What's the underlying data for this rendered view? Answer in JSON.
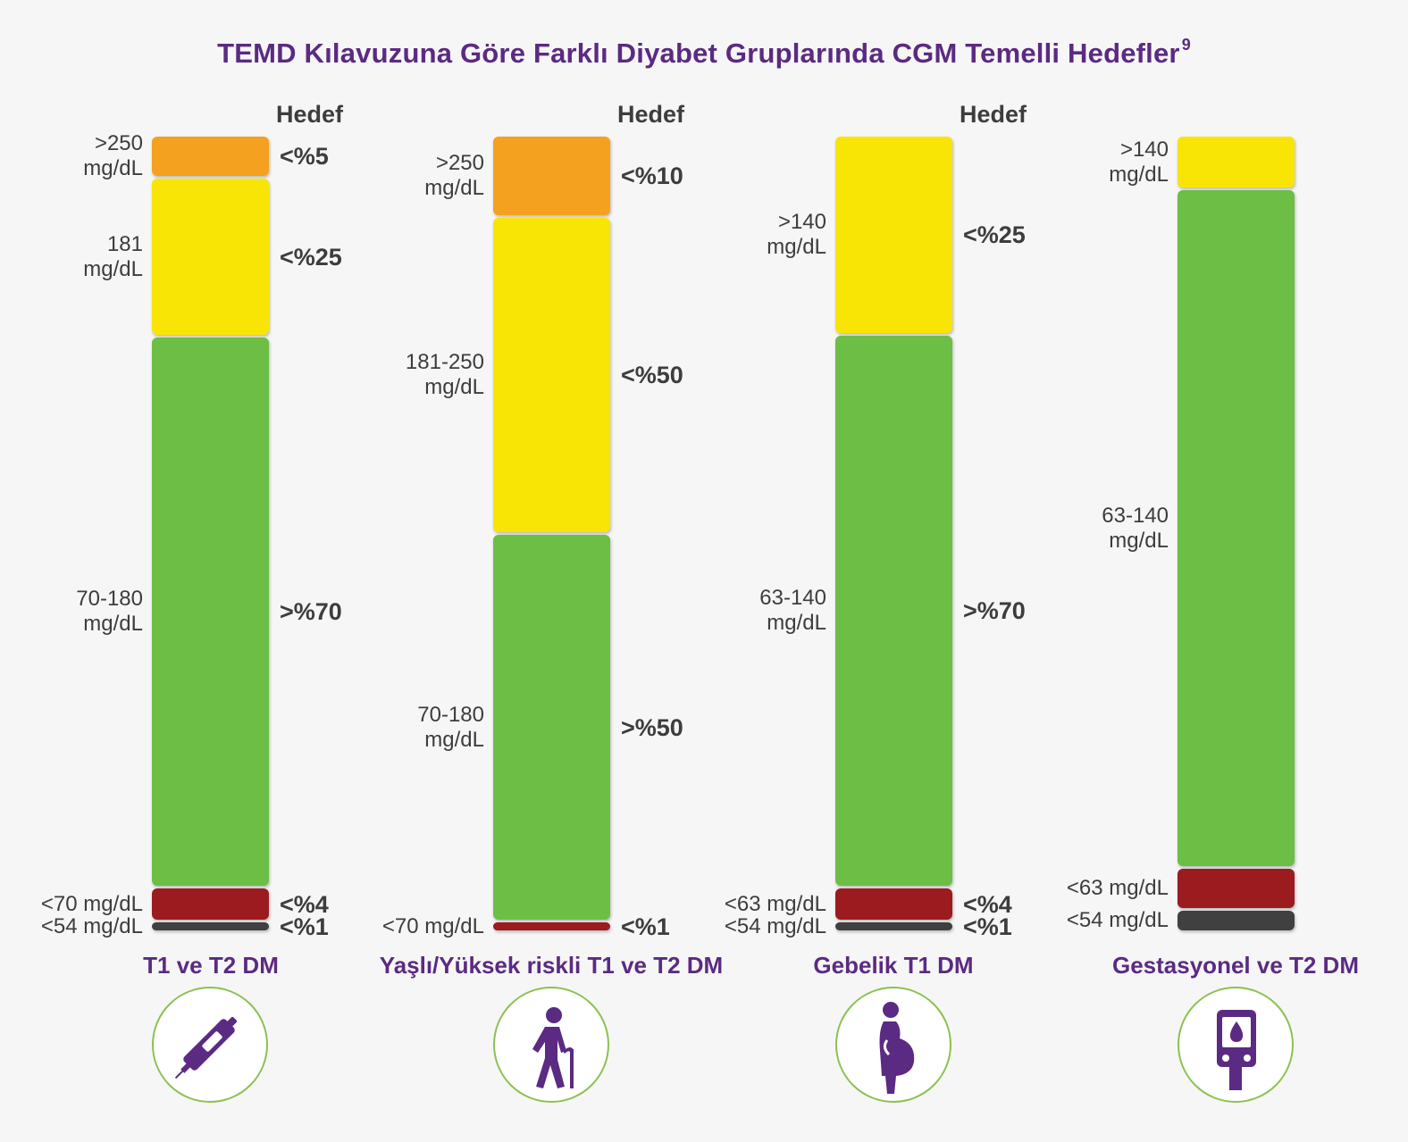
{
  "title": "TEMD Kılavuzuna Göre Farklı Diyabet Gruplarında CGM Temelli Hedefler",
  "title_superscript": "9",
  "target_header": "Hedef",
  "colors": {
    "very_high": "#f4a11f",
    "high": "#f9e505",
    "in_range": "#6dbe45",
    "low": "#9b1b1f",
    "very_low": "#404041",
    "accent": "#5b2a82",
    "circle": "#8cc152"
  },
  "chart_data": [
    {
      "type": "bar",
      "group": "T1 ve T2 DM",
      "icon": "insulin-pen-icon",
      "show_target_header": true,
      "segments": [
        {
          "range": ">250\nmg/dL",
          "target": "<%5",
          "color_key": "very_high",
          "share": 5
        },
        {
          "range": "181\nmg/dL",
          "target": "<%25",
          "color_key": "high",
          "share": 20
        },
        {
          "range": "70-180\nmg/dL",
          "target": ">%70",
          "color_key": "in_range",
          "share": 70
        },
        {
          "range": "<70 mg/dL",
          "target": "<%4",
          "color_key": "low",
          "share": 4
        },
        {
          "range": "<54 mg/dL",
          "target": "<%1",
          "color_key": "very_low",
          "share": 1
        }
      ]
    },
    {
      "type": "bar",
      "group": "Yaşlı/Yüksek riskli T1 ve T2 DM",
      "icon": "elderly-person-with-cane-icon",
      "show_target_header": true,
      "segments": [
        {
          "range": ">250\nmg/dL",
          "target": "<%10",
          "color_key": "very_high",
          "share": 10
        },
        {
          "range": "181-250\nmg/dL",
          "target": "<%50",
          "color_key": "high",
          "share": 40
        },
        {
          "range": "70-180\nmg/dL",
          "target": ">%50",
          "color_key": "in_range",
          "share": 49
        },
        {
          "range": "<70 mg/dL",
          "target": "<%1",
          "color_key": "low",
          "share": 1
        }
      ]
    },
    {
      "type": "bar",
      "group": "Gebelik T1 DM",
      "icon": "pregnant-woman-icon",
      "show_target_header": true,
      "segments": [
        {
          "range": ">140\nmg/dL",
          "target": "<%25",
          "color_key": "high",
          "share": 25
        },
        {
          "range": "63-140\nmg/dL",
          "target": ">%70",
          "color_key": "in_range",
          "share": 70
        },
        {
          "range": "<63 mg/dL",
          "target": "<%4",
          "color_key": "low",
          "share": 4
        },
        {
          "range": "<54 mg/dL",
          "target": "<%1",
          "color_key": "very_low",
          "share": 1
        }
      ]
    },
    {
      "type": "bar",
      "group": "Gestasyonel ve T2 DM",
      "icon": "glucose-meter-icon",
      "show_target_header": false,
      "segments": [
        {
          "range": ">140\nmg/dL",
          "target": "",
          "color_key": "high",
          "share": 6.5
        },
        {
          "range": "63-140\nmg/dL",
          "target": "",
          "color_key": "in_range",
          "share": 86
        },
        {
          "range": "<63 mg/dL",
          "target": "",
          "color_key": "low",
          "share": 5
        },
        {
          "range": "<54 mg/dL",
          "target": "",
          "color_key": "very_low",
          "share": 2.5
        }
      ]
    }
  ]
}
